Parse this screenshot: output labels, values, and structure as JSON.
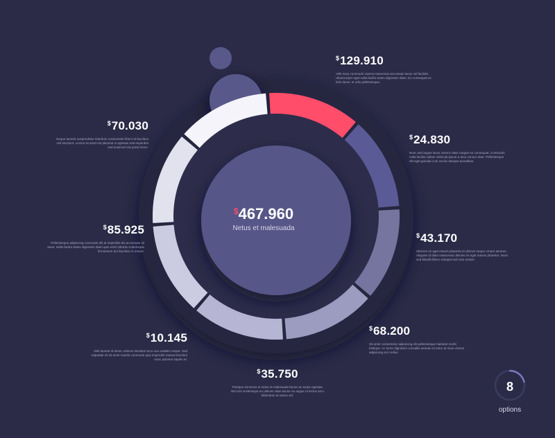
{
  "currency_symbol": "$",
  "center": {
    "total": "467.960",
    "subtitle": "Netus et malesuada"
  },
  "options_badge": {
    "count": "8",
    "label": "options"
  },
  "colors": {
    "background": "#2b2b48",
    "accent": "#ff4d6a",
    "center_disc": "#565688",
    "segments": [
      "#ff4d6a",
      "#5a5a96",
      "#75759f",
      "#9c9cc1",
      "#b6b6d4",
      "#cbcbe2",
      "#e2e2ef",
      "#f4f4fa"
    ]
  },
  "chart_data": {
    "type": "pie",
    "categories": [
      "129.910",
      "24.830",
      "43.170",
      "68.200",
      "35.750",
      "10.145",
      "85.925",
      "70.030"
    ],
    "values": [
      129.91,
      24.83,
      43.17,
      68.2,
      35.75,
      10.145,
      85.925,
      70.03
    ],
    "title": "",
    "total": 467.96
  },
  "callouts": [
    {
      "value": "129.910",
      "text": "Velit risus commodo viverra maecenas accumsan lacus vel facilisis. Ullamcorper eget nulla facilisi etiam dignissim diam. Eu consequat ac felis donec et odio pellentesque."
    },
    {
      "value": "24.830",
      "text": "Nunc sed augue lacus viverra vitae congue eu consequat. Commodo nulla facilisi nullam vehicula ipsum a arcu cursus vitae. Pellentesque elit eget gravida cum sociis natoque penatibus."
    },
    {
      "value": "43.170",
      "text": "Ultricies mi eget mauris pharetra et ultrices neque ornare aenean. Aliquam id diam maecenas ultricies mi eget mauris pharetra. Nunc sed blandit libero volutpat sed cras ornare."
    },
    {
      "value": "68.200",
      "text": "Sit amet consectetur adipiscing elit pellentesque habitant morbi tristique. Ac tortor dignissim convallis aenean et tortor at risus viverra adipiscing at in tellus."
    },
    {
      "value": "35.750",
      "text": "Tristique senectus et netus et malesuada fames ac turpis egestas. Nisl nisi scelerisque eu ultrices vitae auctor eu augue ut lectus arcu bibendum at varius vel."
    },
    {
      "value": "10.145",
      "text": "Velit laoreet id donec ultrices tincidunt arcu non sodales neque. Sed vulputate mi sit amet mauris commodo quis imperdiet massa tincidunt nunc pulvinar sapien et."
    },
    {
      "value": "85.925",
      "text": "Pellentesque adipiscing commodo elit at imperdiet dui accumsan sit amet. Nulla facilisi etiam dignissim diam quis enim lobortis scelerisque fermentum dui faucibus in ornare."
    },
    {
      "value": "70.030",
      "text": "Neque laoreet suspendisse interdum consectetur libero id faucibus nisl tincidunt. Lectus sit amet est placerat in egestas erat imperdiet sed euismod nisi porta lorem."
    }
  ]
}
